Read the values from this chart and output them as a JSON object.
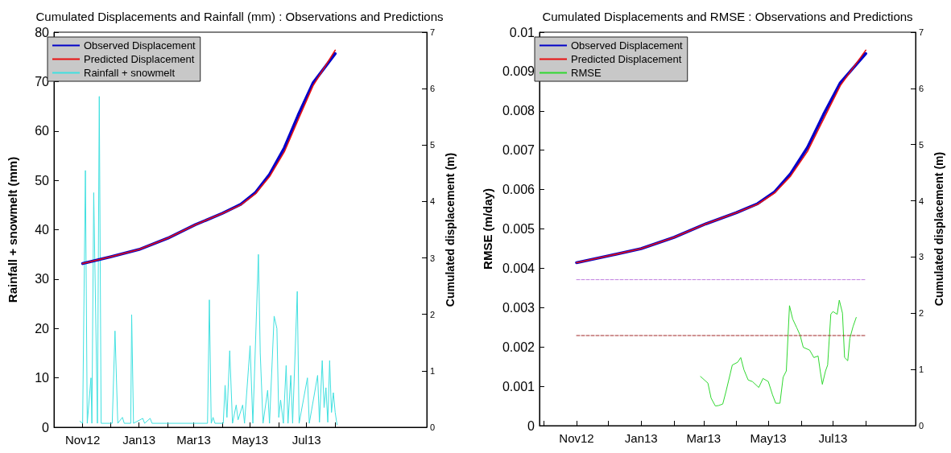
{
  "chart_data": [
    {
      "type": "line",
      "title": "Cumulated Displacements and Rainfall (mm) : Observations and Predictions",
      "ylabel": "Rainfall + snowmelt (mm)",
      "y2label": "Cumulated displacement (m)",
      "xlim": [
        "2012-10-01",
        "2013-11-08"
      ],
      "xticks": [
        {
          "value": "2012-10-01",
          "label": null
        },
        {
          "value": "2012-11-01",
          "label": "Nov12"
        },
        {
          "value": "2012-12-01",
          "label": null
        },
        {
          "value": "2013-01-01",
          "label": "Jan13"
        },
        {
          "value": "2013-02-01",
          "label": null
        },
        {
          "value": "2013-03-01",
          "label": "Mar13"
        },
        {
          "value": "2013-04-01",
          "label": null
        },
        {
          "value": "2013-05-01",
          "label": "May13"
        },
        {
          "value": "2013-06-01",
          "label": null
        },
        {
          "value": "2013-07-01",
          "label": "Jul13"
        },
        {
          "value": "2013-08-01",
          "label": null
        }
      ],
      "ylim": [
        0,
        80
      ],
      "yticks": [
        0,
        10,
        20,
        30,
        40,
        50,
        60,
        70,
        80
      ],
      "y2lim": [
        0,
        7
      ],
      "y2ticks": [
        0,
        1,
        2,
        3,
        4,
        5,
        6,
        7
      ],
      "legend": "top left",
      "series": [
        {
          "name": "Observed Displacement",
          "color": "#0000c8",
          "axis": "y2",
          "x": [
            "2012-11-01",
            "2012-12-01",
            "2013-01-01",
            "2013-02-01",
            "2013-03-03",
            "2013-04-01",
            "2013-04-21",
            "2013-05-07",
            "2013-05-22",
            "2013-06-07",
            "2013-06-22",
            "2013-07-08",
            "2013-08-01"
          ],
          "values": [
            2.9,
            3.02,
            3.15,
            3.35,
            3.59,
            3.79,
            3.95,
            4.16,
            4.48,
            4.95,
            5.53,
            6.1,
            6.62
          ]
        },
        {
          "name": "Predicted Displacement",
          "color": "#e81010",
          "axis": "y2",
          "x": [
            "2012-11-01",
            "2012-12-01",
            "2013-01-01",
            "2013-02-01",
            "2013-03-03",
            "2013-04-01",
            "2013-04-21",
            "2013-05-07",
            "2013-05-22",
            "2013-06-07",
            "2013-06-22",
            "2013-07-08",
            "2013-08-01"
          ],
          "values": [
            2.9,
            3.02,
            3.15,
            3.35,
            3.59,
            3.79,
            3.94,
            4.14,
            4.44,
            4.88,
            5.45,
            6.05,
            6.68
          ]
        },
        {
          "name": "Rainfall + snowmelt",
          "color": "#40e0e0",
          "x": [
            "2012-10-29",
            "2012-11-01",
            "2012-11-04",
            "2012-11-06",
            "2012-11-10",
            "2012-11-11",
            "2012-11-13",
            "2012-11-17",
            "2012-11-19",
            "2012-11-21",
            "2012-12-03",
            "2012-12-06",
            "2012-12-09",
            "2012-12-14",
            "2012-12-16",
            "2012-12-23",
            "2012-12-24",
            "2012-12-26",
            "2013-01-05",
            "2013-01-07",
            "2013-01-13",
            "2013-01-15",
            "2013-03-16",
            "2013-03-18",
            "2013-03-20",
            "2013-03-22",
            "2013-03-24",
            "2013-04-02",
            "2013-04-04",
            "2013-04-06",
            "2013-04-09",
            "2013-04-12",
            "2013-04-16",
            "2013-04-18",
            "2013-04-23",
            "2013-04-25",
            "2013-05-01",
            "2013-05-04",
            "2013-05-08",
            "2013-05-10",
            "2013-05-12",
            "2013-05-15",
            "2013-05-20",
            "2013-05-22",
            "2013-05-27",
            "2013-05-30",
            "2013-06-01",
            "2013-06-03",
            "2013-06-06",
            "2013-06-09",
            "2013-06-11",
            "2013-06-14",
            "2013-06-16",
            "2013-06-21",
            "2013-06-23",
            "2013-07-02",
            "2013-07-04",
            "2013-07-13",
            "2013-07-15",
            "2013-07-18",
            "2013-07-20",
            "2013-07-22",
            "2013-07-24",
            "2013-07-26",
            "2013-07-28",
            "2013-07-30",
            "2013-08-01",
            "2013-08-03"
          ],
          "values": [
            1.2,
            0.8,
            52,
            0.8,
            10,
            0.8,
            47.5,
            0.8,
            67,
            0.8,
            0.8,
            19.5,
            0.8,
            2,
            0.8,
            0.8,
            22.8,
            0.8,
            1.8,
            0.8,
            1.8,
            0.8,
            0.8,
            25.8,
            0.8,
            2,
            0.8,
            0.8,
            8.5,
            2,
            15.5,
            0.8,
            4.5,
            1.5,
            4.5,
            0.8,
            16.5,
            0.8,
            23.5,
            35,
            15,
            0.8,
            7.5,
            0.8,
            22.5,
            20,
            2,
            5.5,
            0.8,
            12.5,
            0.8,
            10.5,
            0.8,
            27.5,
            0.8,
            10,
            0.8,
            10.5,
            1,
            13.5,
            4,
            8,
            1,
            13.5,
            3,
            7,
            3,
            0.5
          ]
        }
      ]
    },
    {
      "type": "line",
      "title": "Cumulated Displacements and RMSE : Observations and Predictions",
      "ylabel": "RMSE (m/day)",
      "y2label": "Cumulated displacement (m)",
      "xlim": [
        "2012-09-27",
        "2013-09-17"
      ],
      "xticks": [
        {
          "value": "2012-10-01",
          "label": null
        },
        {
          "value": "2012-11-01",
          "label": "Nov12"
        },
        {
          "value": "2012-12-01",
          "label": null
        },
        {
          "value": "2013-01-01",
          "label": "Jan13"
        },
        {
          "value": "2013-02-01",
          "label": null
        },
        {
          "value": "2013-03-01",
          "label": "Mar13"
        },
        {
          "value": "2013-04-01",
          "label": null
        },
        {
          "value": "2013-05-01",
          "label": "May13"
        },
        {
          "value": "2013-06-01",
          "label": null
        },
        {
          "value": "2013-07-01",
          "label": "Jul13"
        },
        {
          "value": "2013-08-01",
          "label": null
        }
      ],
      "ylim": [
        0,
        0.01
      ],
      "yticks": [
        0,
        0.001,
        0.002,
        0.003,
        0.004,
        0.005,
        0.006,
        0.007,
        0.008,
        0.009,
        0.01
      ],
      "y2lim": [
        0,
        7
      ],
      "y2ticks": [
        0,
        1,
        2,
        3,
        4,
        5,
        6,
        7
      ],
      "legend": "top left",
      "series": [
        {
          "name": "Observed Displacement",
          "color": "#0000c8",
          "axis": "y2",
          "x": [
            "2012-11-01",
            "2012-12-01",
            "2013-01-01",
            "2013-02-01",
            "2013-03-03",
            "2013-04-01",
            "2013-04-21",
            "2013-05-07",
            "2013-05-22",
            "2013-06-07",
            "2013-06-22",
            "2013-07-08",
            "2013-08-01"
          ],
          "values": [
            2.9,
            3.02,
            3.15,
            3.35,
            3.59,
            3.79,
            3.95,
            4.16,
            4.48,
            4.95,
            5.53,
            6.1,
            6.62
          ]
        },
        {
          "name": "Predicted Displacement",
          "color": "#e81010",
          "axis": "y2",
          "x": [
            "2012-11-01",
            "2012-12-01",
            "2013-01-01",
            "2013-02-01",
            "2013-03-03",
            "2013-04-01",
            "2013-04-21",
            "2013-05-07",
            "2013-05-22",
            "2013-06-07",
            "2013-06-22",
            "2013-07-08",
            "2013-08-01"
          ],
          "values": [
            2.9,
            3.02,
            3.15,
            3.35,
            3.59,
            3.79,
            3.94,
            4.14,
            4.44,
            4.88,
            5.45,
            6.05,
            6.68
          ]
        },
        {
          "name": "RMSE",
          "color": "#30d830",
          "x": [
            "2013-02-26",
            "2013-03-05",
            "2013-03-08",
            "2013-03-12",
            "2013-03-15",
            "2013-03-19",
            "2013-03-22",
            "2013-03-26",
            "2013-03-28",
            "2013-04-02",
            "2013-04-05",
            "2013-04-08",
            "2013-04-12",
            "2013-04-16",
            "2013-04-22",
            "2013-04-26",
            "2013-05-01",
            "2013-05-05",
            "2013-05-08",
            "2013-05-12",
            "2013-05-15",
            "2013-05-18",
            "2013-05-21",
            "2013-05-24",
            "2013-05-28",
            "2013-05-31",
            "2013-06-03",
            "2013-06-09",
            "2013-06-13",
            "2013-06-17",
            "2013-06-19",
            "2013-06-21",
            "2013-06-24",
            "2013-06-26",
            "2013-06-29",
            "2013-07-01",
            "2013-07-05",
            "2013-07-07",
            "2013-07-10",
            "2013-07-12",
            "2013-07-15",
            "2013-07-17",
            "2013-07-20",
            "2013-07-23"
          ],
          "values": [
            0.00125,
            0.00108,
            0.0007,
            0.0005,
            0.00051,
            0.00055,
            0.00086,
            0.00131,
            0.00154,
            0.00161,
            0.00173,
            0.00142,
            0.00116,
            0.00112,
            0.00097,
            0.0012,
            0.00112,
            0.00078,
            0.00057,
            0.00057,
            0.00123,
            0.00139,
            0.00305,
            0.00271,
            0.00248,
            0.0023,
            0.00199,
            0.00192,
            0.00173,
            0.00177,
            0.00139,
            0.00105,
            0.00139,
            0.00154,
            0.00283,
            0.0029,
            0.00283,
            0.00319,
            0.00286,
            0.00173,
            0.00165,
            0.00222,
            0.00252,
            0.00275
          ]
        },
        {
          "color": "#c080e0",
          "line_style": "dashed",
          "x": [
            "2012-11-01",
            "2013-08-01"
          ],
          "values": [
            0.00371,
            0.00371
          ]
        },
        {
          "color": "#a02828",
          "line_style": "dashed",
          "x": [
            "2012-11-01",
            "2013-08-01"
          ],
          "values": [
            0.00229,
            0.00229
          ]
        }
      ]
    }
  ]
}
